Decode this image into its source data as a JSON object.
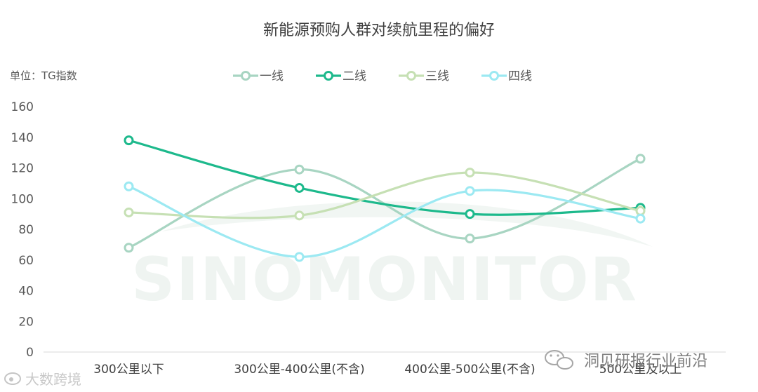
{
  "chart_data": {
    "type": "line",
    "title": "新能源预购人群对续航里程的偏好",
    "unit_label": "单位：TG指数",
    "categories": [
      "300公里以下",
      "300公里-400公里(不含)",
      "400公里-500公里(不含)",
      "500公里及以上"
    ],
    "ylim": [
      0,
      160
    ],
    "yticks": [
      0,
      20,
      40,
      60,
      80,
      100,
      120,
      140,
      160
    ],
    "grid": false,
    "smooth": true,
    "legend_position": "top-center",
    "series": [
      {
        "name": "一线",
        "color": "#A8D5C2",
        "values": [
          68,
          119,
          74,
          126
        ]
      },
      {
        "name": "二线",
        "color": "#1DB98C",
        "values": [
          138,
          107,
          90,
          94
        ]
      },
      {
        "name": "三线",
        "color": "#C6E0B4",
        "values": [
          91,
          89,
          117,
          92
        ]
      },
      {
        "name": "四线",
        "color": "#9CE9F2",
        "values": [
          108,
          62,
          105,
          87
        ]
      }
    ]
  },
  "watermark": {
    "text": "SINOMONITOR",
    "bottom_left": "大数跨境",
    "bottom_right": "洞见研报行业前沿"
  }
}
